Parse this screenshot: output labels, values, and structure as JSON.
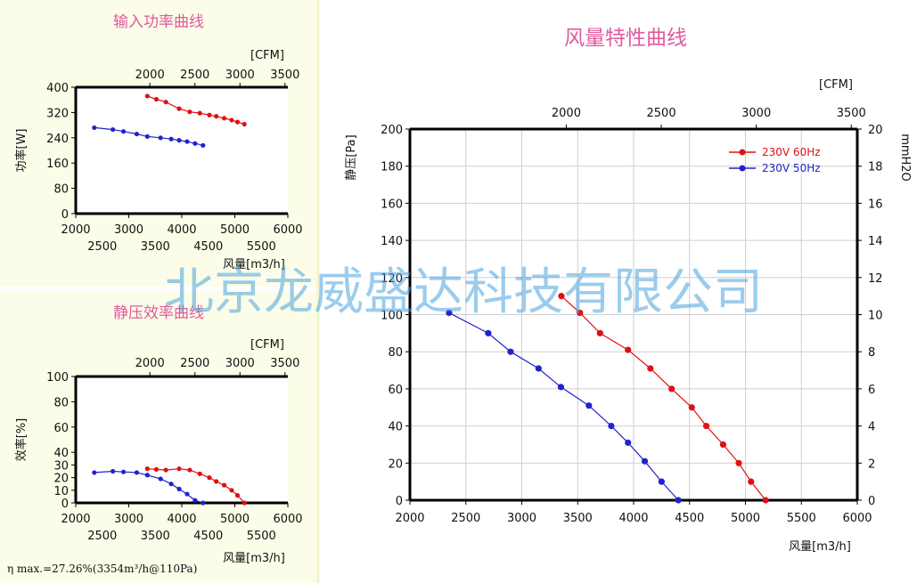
{
  "watermark": "北京龙威盛达科技有限公司",
  "efficiency_note": "η max.=27.26%(3354m³/h@110Pa)",
  "colors": {
    "series_60hz": "#dd1111",
    "series_50hz": "#2222cc",
    "title": "#e05a9c",
    "panel_bg": "#fbfde8"
  },
  "chart_data": [
    {
      "id": "power",
      "type": "line",
      "title": "输入功率曲线",
      "xlabel": "风量[m3/h]",
      "ylabel": "功率[W]",
      "top_axis_label": "[CFM]",
      "xlim": [
        2000,
        6000
      ],
      "ylim": [
        0,
        400
      ],
      "x_ticks": [
        2000,
        3000,
        4000,
        5000,
        6000
      ],
      "x_ticks_minor": [
        2500,
        3500,
        4500,
        5500
      ],
      "y_ticks": [
        0,
        80,
        160,
        240,
        320,
        400
      ],
      "cfm_ticks": [
        2000,
        2500,
        3000,
        3500
      ],
      "series": [
        {
          "name": "230V 60Hz",
          "x": [
            3350,
            3520,
            3700,
            3950,
            4150,
            4340,
            4520,
            4650,
            4800,
            4940,
            5050,
            5180
          ],
          "y": [
            372,
            362,
            353,
            332,
            322,
            318,
            312,
            308,
            302,
            296,
            290,
            283
          ]
        },
        {
          "name": "230V 50Hz",
          "x": [
            2350,
            2700,
            2900,
            3150,
            3350,
            3600,
            3800,
            3950,
            4100,
            4250,
            4400
          ],
          "y": [
            272,
            266,
            260,
            252,
            244,
            240,
            236,
            232,
            228,
            222,
            216
          ]
        }
      ]
    },
    {
      "id": "efficiency",
      "type": "line",
      "title": "静压效率曲线",
      "xlabel": "风量[m3/h]",
      "ylabel": "效率[%]",
      "top_axis_label": "[CFM]",
      "xlim": [
        2000,
        6000
      ],
      "ylim": [
        0,
        100
      ],
      "x_ticks": [
        2000,
        3000,
        4000,
        5000,
        6000
      ],
      "x_ticks_minor": [
        2500,
        3500,
        4500,
        5500
      ],
      "y_ticks": [
        0,
        10,
        20,
        30,
        40,
        60,
        80,
        100
      ],
      "cfm_ticks": [
        2000,
        2500,
        3000,
        3500
      ],
      "series": [
        {
          "name": "230V 60Hz",
          "x": [
            3350,
            3520,
            3700,
            3950,
            4150,
            4340,
            4520,
            4650,
            4800,
            4940,
            5050,
            5180
          ],
          "y": [
            27,
            26.5,
            26,
            27,
            26,
            23,
            20,
            17,
            14,
            10,
            6,
            0
          ]
        },
        {
          "name": "230V 50Hz",
          "x": [
            2350,
            2700,
            2900,
            3150,
            3350,
            3600,
            3800,
            3950,
            4100,
            4250,
            4400
          ],
          "y": [
            24,
            25,
            24.5,
            24,
            22,
            19,
            15,
            11,
            7,
            2,
            0
          ]
        }
      ]
    },
    {
      "id": "airflow",
      "type": "line",
      "title": "风量特性曲线",
      "xlabel": "风量[m3/h]",
      "ylabel": "静压[Pa]",
      "y2label": "mmH2O",
      "top_axis_label": "[CFM]",
      "xlim": [
        2000,
        6000
      ],
      "ylim": [
        0,
        200
      ],
      "y2lim": [
        0,
        20
      ],
      "grid": true,
      "legend": "top-right",
      "x_ticks": [
        2000,
        2500,
        3000,
        3500,
        4000,
        4500,
        5000,
        5500,
        6000
      ],
      "y_ticks": [
        0,
        20,
        40,
        60,
        80,
        100,
        120,
        140,
        160,
        180,
        200
      ],
      "y2_ticks": [
        0,
        2,
        4,
        6,
        8,
        10,
        12,
        14,
        16,
        18,
        20
      ],
      "cfm_ticks": [
        2000,
        2500,
        3000,
        3500
      ],
      "series": [
        {
          "name": "230V 60Hz",
          "x": [
            3354,
            3520,
            3700,
            3950,
            4150,
            4340,
            4520,
            4650,
            4800,
            4940,
            5050,
            5180
          ],
          "y": [
            110,
            101,
            90,
            81,
            71,
            60,
            50,
            40,
            30,
            20,
            10,
            0
          ]
        },
        {
          "name": "230V 50Hz",
          "x": [
            2350,
            2700,
            2900,
            3150,
            3350,
            3600,
            3800,
            3950,
            4100,
            4250,
            4400
          ],
          "y": [
            101,
            90,
            80,
            71,
            61,
            51,
            40,
            31,
            21,
            10,
            0
          ]
        }
      ]
    }
  ]
}
